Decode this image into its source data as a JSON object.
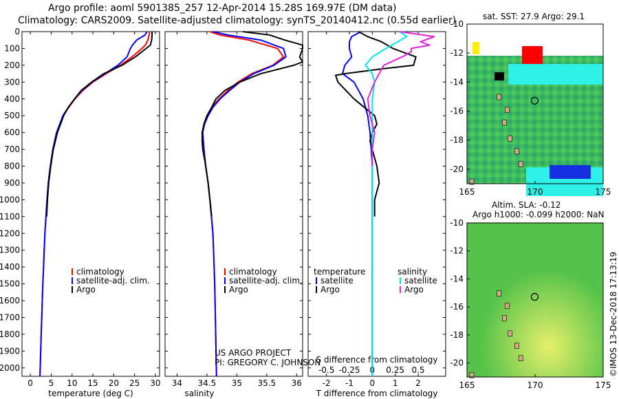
{
  "header": {
    "line1": "Argo profile: aoml 5901385_257 12-Apr-2014 15.28S 169.97E (DM data)",
    "line2": "Climatology: CARS2009. Satellite-adjusted climatology: synTS_20140412.nc (0.55d earlier)"
  },
  "credits": {
    "line1": "US ARGO PROJECT",
    "line2": "PI: GREGORY C. JOHNSON",
    "stamp": "©IMOS 13-Dec-2018 17:13:19"
  },
  "colors": {
    "climatology": "#ff0000",
    "satellite": "#0000ff",
    "argo": "#000000",
    "sat_salinity": "#00e5e5",
    "argo_salinity": "#e020e0"
  },
  "chart_data": [
    {
      "type": "line",
      "id": "temperature",
      "xlabel": "temperature (deg C)",
      "ylabel": "",
      "xlim": [
        -2,
        31
      ],
      "ylim": [
        2050,
        0
      ],
      "xticks": [
        0,
        5,
        10,
        15,
        20,
        25,
        30
      ],
      "yticks": [
        0,
        100,
        200,
        300,
        400,
        500,
        600,
        700,
        800,
        900,
        1000,
        1100,
        1200,
        1300,
        1400,
        1500,
        1600,
        1700,
        1800,
        1900,
        2000
      ],
      "legend": [
        "climatology",
        "satellite-adj. clim.",
        "Argo"
      ],
      "legend_position": "lower-center",
      "series": [
        {
          "name": "climatology",
          "depth": [
            0,
            20,
            50,
            80,
            100,
            150,
            200,
            250,
            300,
            350,
            400,
            450,
            500,
            600,
            700,
            800,
            900,
            1000,
            1200,
            1500,
            1800,
            2050
          ],
          "values": [
            28.6,
            28.5,
            28.2,
            27.6,
            26.8,
            24.4,
            21.6,
            18.2,
            15.0,
            12.6,
            10.7,
            9.2,
            7.9,
            6.3,
            5.4,
            4.8,
            4.3,
            4.0,
            3.5,
            3.0,
            2.6,
            2.3
          ]
        },
        {
          "name": "satellite-adj. clim.",
          "depth": [
            0,
            20,
            50,
            80,
            100,
            150,
            200,
            250,
            300,
            350,
            400,
            450,
            500,
            600,
            700,
            800,
            900,
            1000,
            1200,
            1500,
            1800,
            2050
          ],
          "values": [
            28.0,
            27.5,
            25.5,
            24.5,
            24.0,
            23.2,
            21.0,
            17.9,
            14.8,
            12.4,
            10.6,
            9.1,
            7.8,
            6.3,
            5.4,
            4.8,
            4.3,
            4.0,
            3.5,
            3.0,
            2.6,
            2.3
          ]
        },
        {
          "name": "Argo",
          "depth": [
            0,
            20,
            50,
            80,
            100,
            150,
            200,
            250,
            300,
            350,
            400,
            450,
            500,
            600,
            700,
            800,
            900,
            1000,
            1100
          ],
          "values": [
            29.2,
            29.2,
            29.1,
            28.8,
            27.8,
            25.2,
            22.0,
            17.6,
            14.7,
            12.2,
            10.6,
            9.1,
            8.0,
            6.5,
            5.5,
            4.9,
            4.4,
            4.1,
            3.9
          ]
        }
      ]
    },
    {
      "type": "line",
      "id": "salinity",
      "xlabel": "salinity",
      "ylabel": "",
      "xlim": [
        33.8,
        36.1
      ],
      "ylim": [
        2050,
        0
      ],
      "xticks": [
        34,
        34.5,
        35,
        35.5,
        36
      ],
      "legend": [
        "climatology",
        "satellite-adj. clim.",
        "Argo"
      ],
      "legend_position": "lower-right",
      "series": [
        {
          "name": "climatology",
          "depth": [
            0,
            20,
            50,
            100,
            150,
            200,
            250,
            300,
            350,
            400,
            450,
            500,
            550,
            600,
            700,
            800,
            900,
            1000,
            1200,
            1500,
            2050
          ],
          "values": [
            34.55,
            34.72,
            35.2,
            35.68,
            35.78,
            35.6,
            35.25,
            35.02,
            34.85,
            34.7,
            34.58,
            34.5,
            34.45,
            34.43,
            34.45,
            34.48,
            34.52,
            34.55,
            34.6,
            34.63,
            34.66
          ]
        },
        {
          "name": "satellite-adj. clim.",
          "depth": [
            0,
            20,
            50,
            100,
            150,
            200,
            250,
            300,
            350,
            400,
            450,
            500,
            550,
            600,
            700,
            800,
            900,
            1000,
            1200,
            1500,
            2050
          ],
          "values": [
            34.6,
            34.85,
            35.4,
            35.78,
            35.82,
            35.62,
            35.28,
            35.05,
            34.88,
            34.72,
            34.6,
            34.52,
            34.46,
            34.43,
            34.45,
            34.48,
            34.52,
            34.55,
            34.6,
            34.63,
            34.66
          ]
        },
        {
          "name": "Argo",
          "depth": [
            0,
            20,
            50,
            80,
            100,
            150,
            180,
            200,
            250,
            300,
            350,
            400,
            450,
            500,
            550,
            600,
            650,
            700,
            800,
            900,
            1000,
            1100
          ],
          "values": [
            35.1,
            35.55,
            35.8,
            36.1,
            36.1,
            36.05,
            36.1,
            35.95,
            35.4,
            35.05,
            34.8,
            34.65,
            34.58,
            34.5,
            34.45,
            34.42,
            34.42,
            34.43,
            34.48,
            34.52,
            34.55,
            34.58
          ]
        }
      ]
    },
    {
      "type": "line",
      "id": "difference",
      "xlabel": "T difference from climatology",
      "xlabel2": "S difference from climatology",
      "xlim": [
        -2.8,
        3.2
      ],
      "ylim": [
        2050,
        0
      ],
      "xticks": [
        -2,
        -1,
        0,
        1,
        2
      ],
      "xticks_top_labels": [
        "-0.5",
        "-0.25",
        "0",
        "0.25",
        "0.5"
      ],
      "xticks_top_values": [
        -2,
        -1,
        0,
        1,
        2
      ],
      "legend": [
        "temperature",
        "satellite",
        "Argo",
        "salinity",
        "satellite",
        "Argo"
      ],
      "series": [
        {
          "name": "satellite",
          "kind": "temperature",
          "depth": [
            0,
            30,
            60,
            100,
            150,
            200,
            250,
            300,
            400,
            500,
            600,
            700,
            800,
            900,
            1000,
            2050
          ],
          "values": [
            -0.5,
            -0.9,
            -1.0,
            -1.0,
            -0.9,
            -1.2,
            -1.3,
            -0.8,
            -0.4,
            -0.2,
            -0.1,
            -0.05,
            0.0,
            0.0,
            0.0,
            0.0
          ]
        },
        {
          "name": "Argo",
          "kind": "temperature",
          "depth": [
            0,
            30,
            60,
            100,
            150,
            200,
            220,
            250,
            260,
            300,
            400,
            500,
            550,
            600,
            650,
            700,
            800,
            900,
            1000,
            1100
          ],
          "values": [
            -0.6,
            -0.2,
            0.4,
            0.9,
            1.9,
            1.8,
            0.5,
            -1.2,
            -1.6,
            -1.5,
            -0.8,
            0.1,
            0.2,
            0.0,
            -0.1,
            0.0,
            0.2,
            0.3,
            0.1,
            0.1
          ]
        },
        {
          "name": "satellite",
          "kind": "salinity",
          "depth": [
            0,
            30,
            60,
            100,
            150,
            200,
            250,
            300,
            400,
            500,
            600,
            700,
            800,
            900,
            1000,
            2050
          ],
          "values": [
            1.2,
            1.5,
            1.1,
            0.6,
            0.0,
            -0.3,
            0.0,
            0.1,
            0.0,
            0.0,
            0.0,
            0.0,
            0.0,
            0.0,
            0.0,
            0.0
          ]
        },
        {
          "name": "Argo",
          "kind": "salinity",
          "depth": [
            0,
            30,
            60,
            80,
            100,
            120,
            150,
            200,
            300,
            400,
            500,
            600,
            700,
            800
          ],
          "values": [
            1.2,
            2.7,
            2.1,
            2.5,
            1.7,
            1.7,
            1.3,
            0.5,
            0.1,
            -0.2,
            -0.1,
            0.1,
            0.0,
            0.0
          ]
        }
      ]
    },
    {
      "type": "heatmap",
      "id": "sst-map",
      "title": "sat. SST: 27.9 Argo: 29.1",
      "xlim": [
        165,
        175
      ],
      "ylim": [
        -21,
        -10
      ],
      "xticks": [
        165,
        170,
        175
      ],
      "yticks": [
        -10,
        -12,
        -14,
        -16,
        -18,
        -20
      ],
      "marker": {
        "lon": 169.97,
        "lat": -15.28
      }
    },
    {
      "type": "heatmap",
      "id": "sla-map",
      "title": "Altim. SLA: -0.12",
      "subtitle": "Argo h1000: -0.099 h2000: NaN",
      "xlim": [
        165,
        175
      ],
      "ylim": [
        -21,
        -10
      ],
      "xticks": [
        165,
        170,
        175
      ],
      "yticks": [
        -10,
        -12,
        -14,
        -16,
        -18,
        -20
      ],
      "marker": {
        "lon": 169.97,
        "lat": -15.28
      }
    }
  ]
}
